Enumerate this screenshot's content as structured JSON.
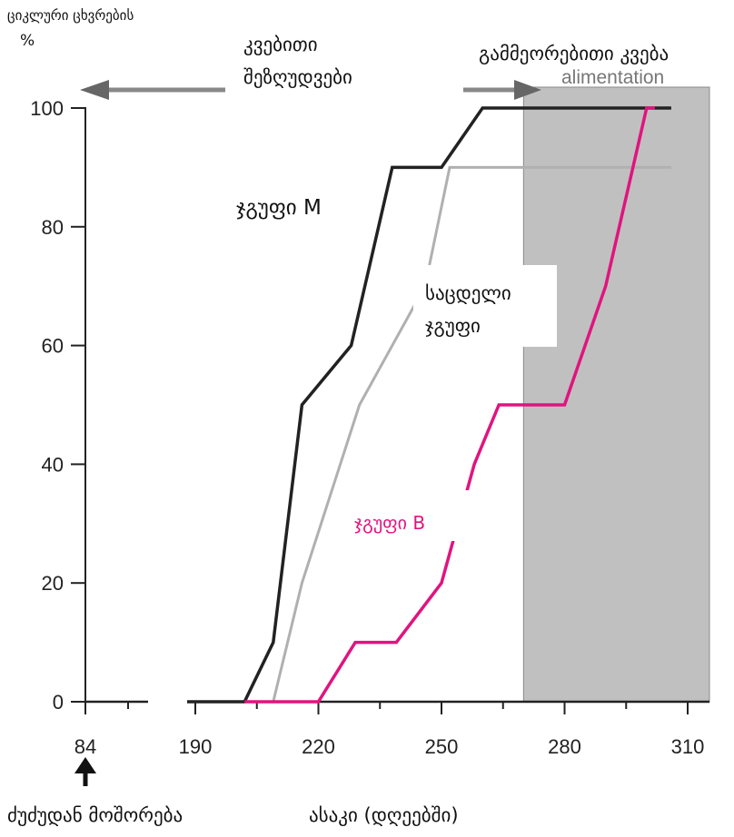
{
  "chart_data": {
    "type": "line",
    "ylabel": "ციკლური ცხვრების",
    "yunit": "%",
    "xlabel": "ასაკი (დღეებში)",
    "weaning_label": "ძუძუდან მოშორება",
    "ylim": [
      0,
      100
    ],
    "yticks": [
      0,
      20,
      40,
      60,
      80,
      100
    ],
    "xticks": [
      "84",
      "190",
      "220",
      "250",
      "280",
      "310"
    ],
    "shaded_region": {
      "x_from": 270,
      "x_to": 310,
      "label": "გამმეორებითი კვება",
      "label_behind": "alimentation",
      "color": "#c0c0c0"
    },
    "arrows": {
      "left_label_line1": "კვებითი",
      "left_label_line2": "შეზღუდვები"
    },
    "series": [
      {
        "name": "ჯგუფი M",
        "color": "#222222",
        "points": [
          [
            188,
            0
          ],
          [
            202,
            0
          ],
          [
            209,
            10
          ],
          [
            216,
            50
          ],
          [
            228,
            60
          ],
          [
            238,
            90
          ],
          [
            250,
            90
          ],
          [
            260,
            100
          ],
          [
            306,
            100
          ]
        ]
      },
      {
        "name": "საცდელი ჯგუფი",
        "color": "#b0b0b0",
        "points": [
          [
            209,
            0
          ],
          [
            216,
            20
          ],
          [
            230,
            50
          ],
          [
            246,
            70
          ],
          [
            252,
            90
          ],
          [
            306,
            90
          ]
        ]
      },
      {
        "name": "ჯგუფი B",
        "color": "#e0147f",
        "points": [
          [
            202,
            0
          ],
          [
            220,
            0
          ],
          [
            229,
            10
          ],
          [
            239,
            10
          ],
          [
            250,
            20
          ],
          [
            258,
            40
          ],
          [
            264,
            50
          ],
          [
            280,
            50
          ],
          [
            290,
            70
          ],
          [
            300,
            100
          ],
          [
            302,
            100
          ]
        ]
      }
    ],
    "segment_84": {
      "x_from": 84,
      "x_to": 88,
      "y": 0
    }
  }
}
